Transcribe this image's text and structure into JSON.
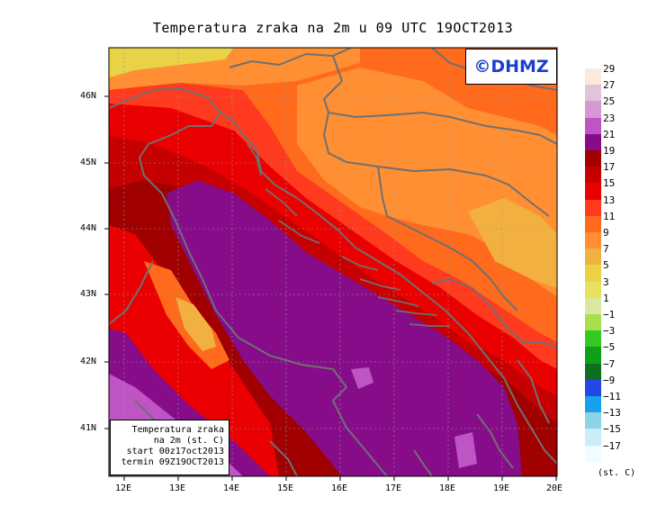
{
  "title": "Temperatura zraka na 2m u 09 UTC 19OCT2013",
  "logo_text": "©DHMZ",
  "info": {
    "line1": "Temperatura zraka",
    "line2": "na 2m (st. C)",
    "line3": "start 00z17oct2013",
    "line4": "termin 09Z19OCT2013"
  },
  "legend": {
    "unit": "(st. C)",
    "labels": [
      "29",
      "27",
      "25",
      "23",
      "21",
      "19",
      "17",
      "15",
      "13",
      "11",
      "9",
      "7",
      "5",
      "3",
      "1",
      "−1",
      "−3",
      "−5",
      "−7",
      "−9",
      "−11",
      "−13",
      "−15",
      "−17"
    ],
    "colors": [
      "#fbe9d9",
      "#e2c4d8",
      "#d39ad2",
      "#bf55c4",
      "#860c8a",
      "#a00000",
      "#c60000",
      "#ea0000",
      "#ff3a1f",
      "#ff6a1c",
      "#ff8f32",
      "#f2b040",
      "#e8d246",
      "#e8e060",
      "#d8e8a0",
      "#a8df4c",
      "#36c926",
      "#10a018",
      "#0e6e22",
      "#2448e8",
      "#18a0e8",
      "#8ad4e6",
      "#c8eef6",
      "#f0fcff"
    ]
  },
  "axes": {
    "lat_labels": [
      "46N",
      "45N",
      "44N",
      "43N",
      "42N",
      "41N"
    ],
    "lon_labels": [
      "12E",
      "13E",
      "14E",
      "15E",
      "16E",
      "17E",
      "18E",
      "19E",
      "20E"
    ]
  }
}
